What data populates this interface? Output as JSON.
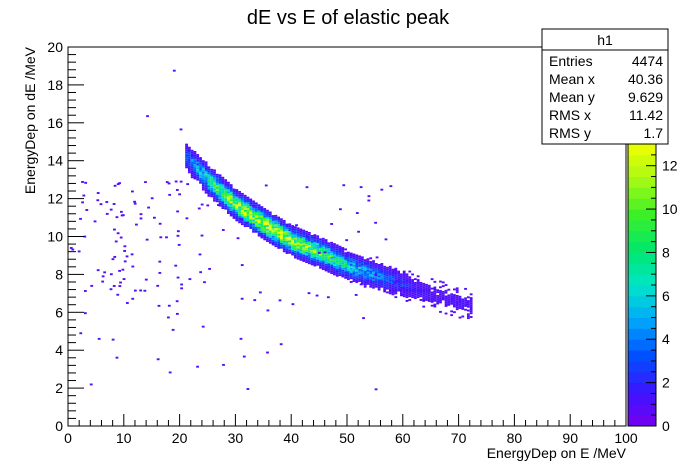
{
  "chart_data": {
    "type": "heatmap",
    "title": "dE vs E of elastic peak",
    "xlabel": "EnergyDep on E /MeV",
    "ylabel": "EnergyDep on dE /MeV",
    "xlim": [
      0,
      100
    ],
    "ylim": [
      0,
      20
    ],
    "x_ticks": [
      "0",
      "10",
      "20",
      "30",
      "40",
      "50",
      "60",
      "70",
      "80",
      "90",
      "100"
    ],
    "y_ticks": [
      "0",
      "2",
      "4",
      "6",
      "8",
      "10",
      "12",
      "14",
      "16",
      "18",
      "20"
    ],
    "z_range": [
      0,
      13
    ],
    "z_ticks": [
      "0",
      "2",
      "4",
      "6",
      "8",
      "10",
      "12"
    ],
    "grid": false,
    "band": {
      "description_points": [
        {
          "E": 21,
          "dE": 14.2,
          "counts": 3
        },
        {
          "E": 25,
          "dE": 12.9,
          "counts": 7
        },
        {
          "E": 30,
          "dE": 11.6,
          "counts": 11
        },
        {
          "E": 35,
          "dE": 10.6,
          "counts": 12
        },
        {
          "E": 40,
          "dE": 9.7,
          "counts": 11
        },
        {
          "E": 45,
          "dE": 9.1,
          "counts": 9
        },
        {
          "E": 50,
          "dE": 8.4,
          "counts": 6
        },
        {
          "E": 55,
          "dE": 7.9,
          "counts": 4
        },
        {
          "E": 60,
          "dE": 7.4,
          "counts": 2
        },
        {
          "E": 65,
          "dE": 6.9,
          "counts": 1
        },
        {
          "E": 72,
          "dE": 6.3,
          "counts": 1
        }
      ]
    },
    "stats": {
      "name": "h1",
      "rows": [
        {
          "label": "Entries",
          "value": "4474"
        },
        {
          "label": "Mean x",
          "value": "40.36"
        },
        {
          "label": "Mean y",
          "value": "9.629"
        },
        {
          "label": "RMS x",
          "value": "11.42"
        },
        {
          "label": "RMS y",
          "value": "1.7"
        }
      ]
    }
  }
}
